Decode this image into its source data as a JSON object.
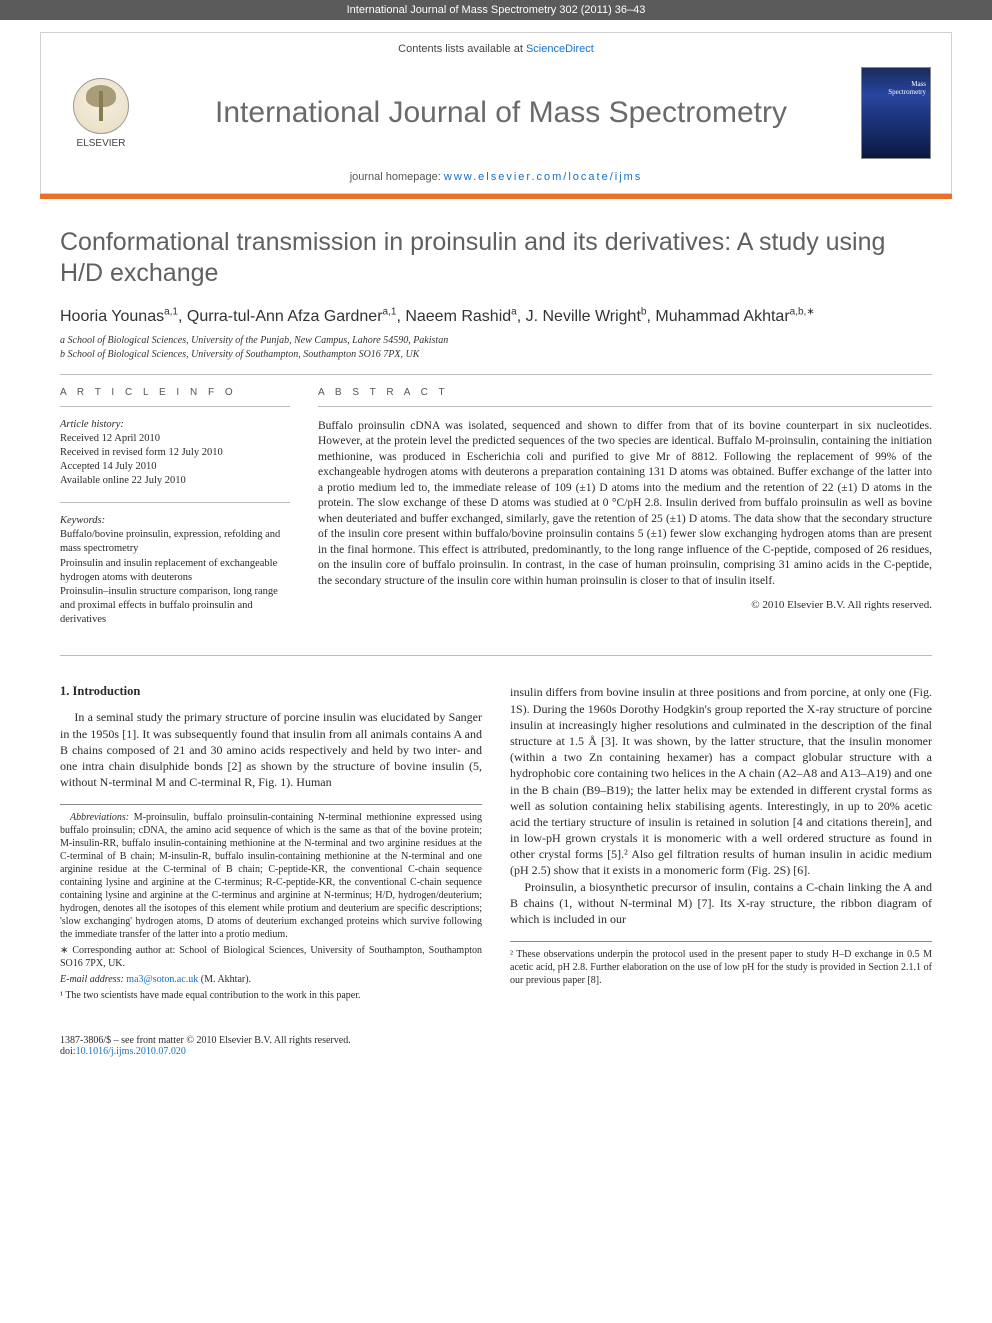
{
  "header": {
    "running": "International Journal of Mass Spectrometry 302 (2011) 36–43"
  },
  "masthead": {
    "contents_line_pre": "Contents lists available at ",
    "contents_link": "ScienceDirect",
    "journal_name": "International Journal of Mass Spectrometry",
    "homepage_pre": "journal homepage: ",
    "homepage_url": "www.elsevier.com/locate/ijms",
    "publisher_label": "ELSEVIER"
  },
  "article": {
    "title": "Conformational transmission in proinsulin and its derivatives: A study using H/D exchange",
    "authors_html": "Hooria Younas<sup>a,1</sup>, Qurra-tul-Ann Afza Gardner<sup>a,1</sup>, Naeem Rashid<sup>a</sup>, J. Neville Wright<sup>b</sup>, Muhammad Akhtar<sup>a,b,∗</sup>",
    "affiliations": {
      "a": "a School of Biological Sciences, University of the Punjab, New Campus, Lahore 54590, Pakistan",
      "b": "b School of Biological Sciences, University of Southampton, Southampton SO16 7PX, UK"
    }
  },
  "info": {
    "section_label": "A R T I C L E   I N F O",
    "history_title": "Article history:",
    "history": "Received 12 April 2010\nReceived in revised form 12 July 2010\nAccepted 14 July 2010\nAvailable online 22 July 2010",
    "keywords_title": "Keywords:",
    "keywords": "Buffalo/bovine proinsulin, expression, refolding and mass spectrometry\nProinsulin and insulin replacement of exchangeable hydrogen atoms with deuterons\nProinsulin–insulin structure comparison, long range and proximal effects in buffalo proinsulin and derivatives"
  },
  "abstract": {
    "section_label": "A B S T R A C T",
    "text": "Buffalo proinsulin cDNA was isolated, sequenced and shown to differ from that of its bovine counterpart in six nucleotides. However, at the protein level the predicted sequences of the two species are identical. Buffalo M-proinsulin, containing the initiation methionine, was produced in Escherichia coli and purified to give Mr of 8812. Following the replacement of 99% of the exchangeable hydrogen atoms with deuterons a preparation containing 131 D atoms was obtained. Buffer exchange of the latter into a protio medium led to, the immediate release of 109 (±1) D atoms into the medium and the retention of 22 (±1) D atoms in the protein. The slow exchange of these D atoms was studied at 0 °C/pH 2.8. Insulin derived from buffalo proinsulin as well as bovine when deuteriated and buffer exchanged, similarly, gave the retention of 25 (±1) D atoms. The data show that the secondary structure of the insulin core present within buffalo/bovine proinsulin contains 5 (±1) fewer slow exchanging hydrogen atoms than are present in the final hormone. This effect is attributed, predominantly, to the long range influence of the C-peptide, composed of 26 residues, on the insulin core of buffalo proinsulin. In contrast, in the case of human proinsulin, comprising 31 amino acids in the C-peptide, the secondary structure of the insulin core within human proinsulin is closer to that of insulin itself.",
    "copyright": "© 2010 Elsevier B.V. All rights reserved."
  },
  "body": {
    "intro_heading": "1. Introduction",
    "col1_p1": "In a seminal study the primary structure of porcine insulin was elucidated by Sanger in the 1950s [1]. It was subsequently found that insulin from all animals contains A and B chains composed of 21 and 30 amino acids respectively and held by two inter- and one intra chain disulphide bonds [2] as shown by the structure of bovine insulin (5, without N-terminal M and C-terminal R, Fig. 1). Human",
    "col2_p1": "insulin differs from bovine insulin at three positions and from porcine, at only one (Fig. 1S). During the 1960s Dorothy Hodgkin's group reported the X-ray structure of porcine insulin at increasingly higher resolutions and culminated in the description of the final structure at 1.5 Å [3]. It was shown, by the latter structure, that the insulin monomer (within a two Zn containing hexamer) has a compact globular structure with a hydrophobic core containing two helices in the A chain (A2–A8 and A13–A19) and one in the B chain (B9–B19); the latter helix may be extended in different crystal forms as well as solution containing helix stabilising agents. Interestingly, in up to 20% acetic acid the tertiary structure of insulin is retained in solution [4 and citations therein], and in low-pH grown crystals it is monomeric with a well ordered structure as found in other crystal forms [5].² Also gel filtration results of human insulin in acidic medium (pH 2.5) show that it exists in a monomeric form (Fig. 2S) [6].",
    "col2_p2": "Proinsulin, a biosynthetic precursor of insulin, contains a C-chain linking the A and B chains (1, without N-terminal M) [7]. Its X-ray structure, the ribbon diagram of which is included in our"
  },
  "footnotes": {
    "abbrev_label": "Abbreviations:",
    "abbrev": "M-proinsulin, buffalo proinsulin-containing N-terminal methionine expressed using buffalo proinsulin; cDNA, the amino acid sequence of which is the same as that of the bovine protein; M-insulin-RR, buffalo insulin-containing methionine at the N-terminal and two arginine residues at the C-terminal of B chain; M-insulin-R, buffalo insulin-containing methionine at the N-terminal and one arginine residue at the C-terminal of B chain; C-peptide-KR, the conventional C-chain sequence containing lysine and arginine at the C-terminus; R-C-peptide-KR, the conventional C-chain sequence containing lysine and arginine at the C-terminus and arginine at N-terminus; H/D, hydrogen/deuterium; hydrogen, denotes all the isotopes of this element while protium and deuterium are specific descriptions; 'slow exchanging' hydrogen atoms, D atoms of deuterium exchanged proteins which survive following the immediate transfer of the latter into a protio medium.",
    "corr": "∗ Corresponding author at: School of Biological Sciences, University of Southampton, Southampton SO16 7PX, UK.",
    "email_label": "E-mail address:",
    "email": "ma3@soton.ac.uk",
    "email_tail": " (M. Akhtar).",
    "note1": "¹ The two scientists have made equal contribution to the work in this paper.",
    "note2": "² These observations underpin the protocol used in the present paper to study H–D exchange in 0.5 M acetic acid, pH 2.8. Further elaboration on the use of low pH for the study is provided in Section 2.1.1 of our previous paper [8]."
  },
  "bottom": {
    "left1": "1387-3806/$ – see front matter © 2010 Elsevier B.V. All rights reserved.",
    "doi_label": "doi:",
    "doi": "10.1016/j.ijms.2010.07.020"
  },
  "colors": {
    "header_bg": "#5b5b5b",
    "accent": "#e8702a",
    "link": "#1470c9",
    "title_gray": "#606060"
  }
}
